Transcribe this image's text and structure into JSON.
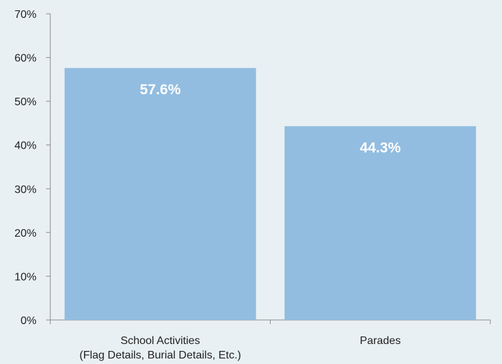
{
  "chart_data": {
    "type": "bar",
    "categories": [
      [
        "School Activities",
        "(Flag Details, Burial Details, Etc.)"
      ],
      [
        "Parades"
      ]
    ],
    "values": [
      57.6,
      44.3
    ],
    "data_labels": [
      "57.6%",
      "44.3%"
    ],
    "ylim": [
      0,
      70
    ],
    "yticks": [
      0,
      10,
      20,
      30,
      40,
      50,
      60,
      70
    ],
    "ytick_labels": [
      "0%",
      "10%",
      "20%",
      "30%",
      "40%",
      "50%",
      "60%",
      "70%"
    ],
    "grid": false,
    "legend": "none",
    "colors": {
      "bar": "#92bde0",
      "axis": "#8a8a8a",
      "background": "#e8f0f3"
    }
  }
}
